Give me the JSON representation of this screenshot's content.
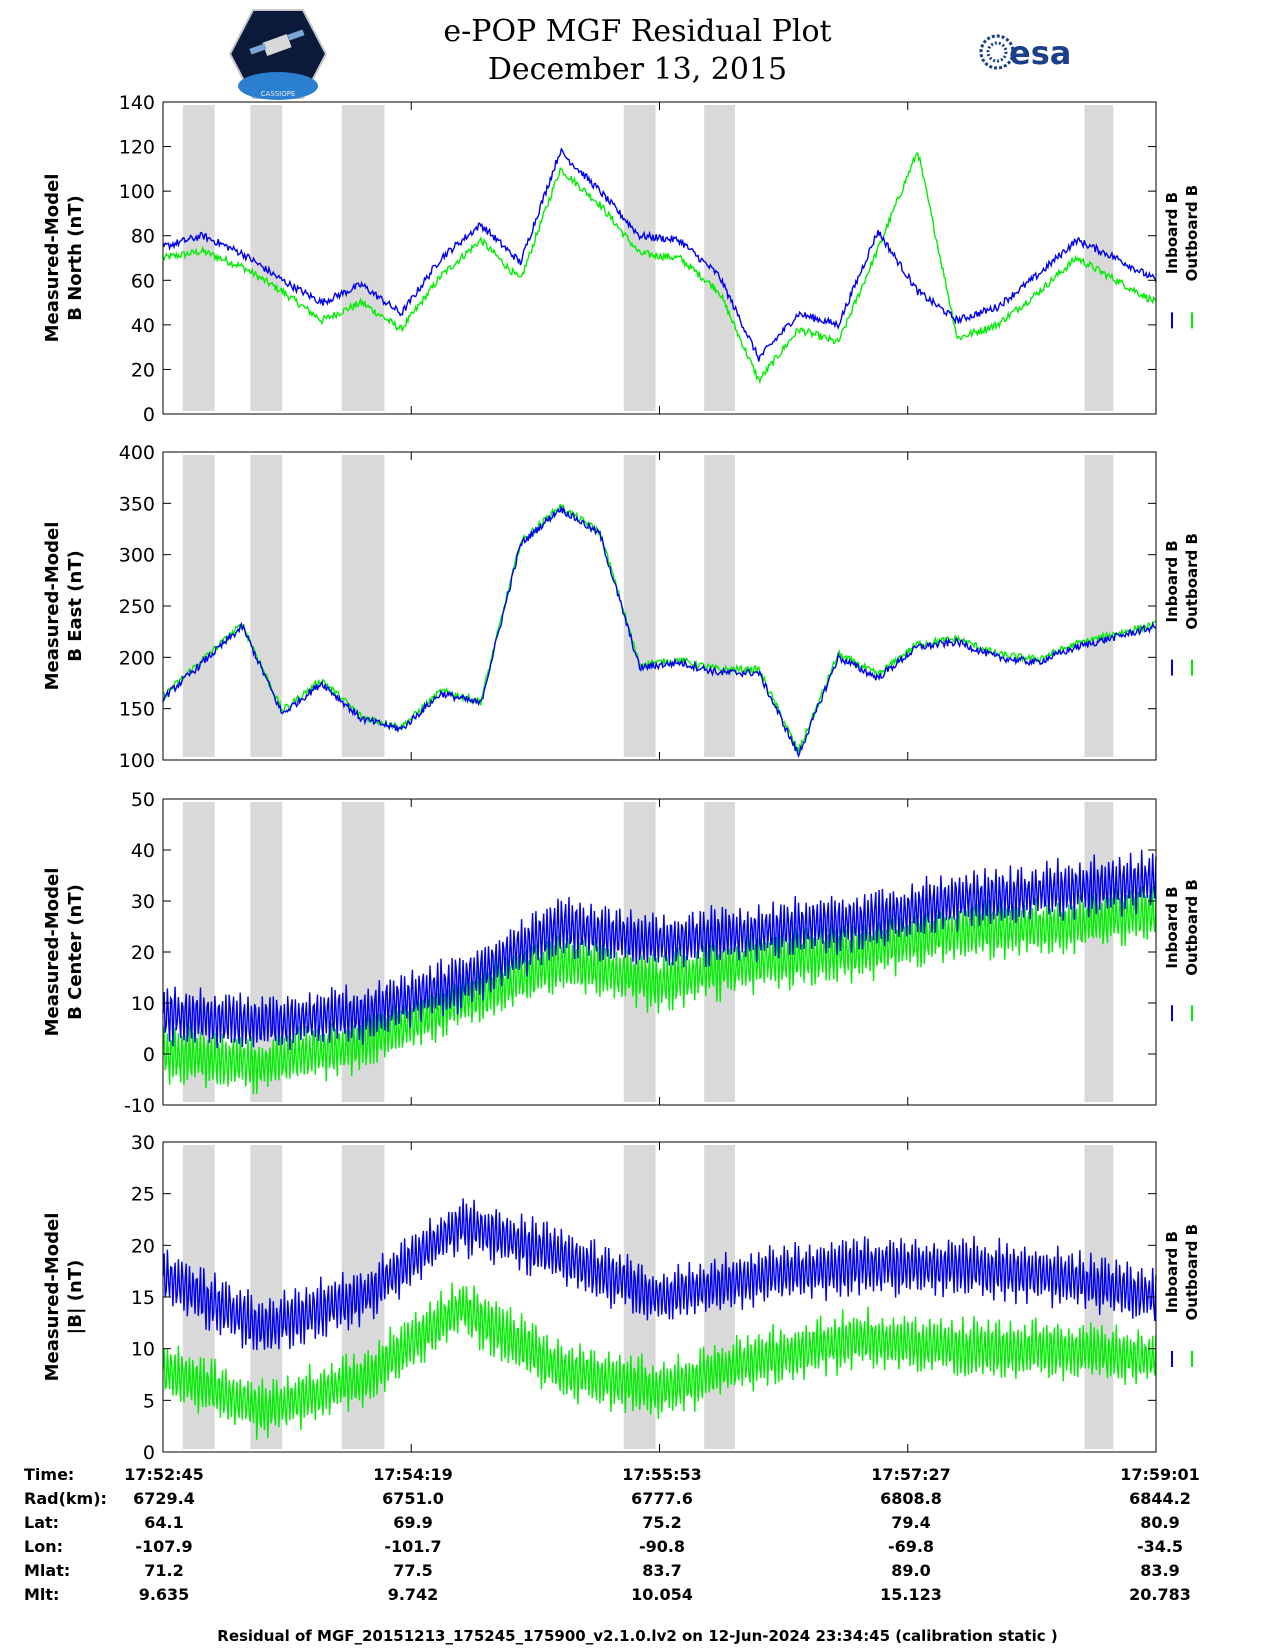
{
  "title": "e-POP MGF Residual Plot",
  "date": "December 13, 2015",
  "logo_right_text": "esa",
  "logo_left_text": "CASSIOPE",
  "colors": {
    "inboard": "#0000ee",
    "outboard": "#00ee00",
    "shade": "#d9d9d9"
  },
  "chart_data": [
    {
      "type": "line",
      "ylabel": [
        "Measured-Model",
        "B North (nT)"
      ],
      "ylim": [
        0,
        140
      ],
      "yticks": [
        0,
        20,
        40,
        60,
        80,
        100,
        120,
        140
      ],
      "legend": [
        "Inboard B",
        "Outboard B"
      ],
      "series": [
        {
          "name": "Inboard B",
          "x": [
            0,
            4,
            8,
            12,
            16,
            20,
            24,
            28,
            32,
            36,
            40,
            44,
            48,
            52,
            56,
            60,
            64,
            68,
            72,
            76,
            80,
            84,
            88,
            92,
            96,
            100
          ],
          "values": [
            75,
            80,
            72,
            60,
            50,
            58,
            45,
            70,
            85,
            68,
            118,
            100,
            80,
            78,
            62,
            25,
            45,
            40,
            82,
            55,
            42,
            48,
            62,
            78,
            70,
            60
          ]
        },
        {
          "name": "Outboard B",
          "x": [
            0,
            4,
            8,
            12,
            16,
            20,
            24,
            28,
            32,
            36,
            40,
            44,
            48,
            52,
            56,
            60,
            64,
            68,
            72,
            76,
            80,
            84,
            88,
            92,
            96,
            100
          ],
          "values": [
            70,
            73,
            66,
            55,
            42,
            50,
            38,
            62,
            78,
            60,
            110,
            94,
            72,
            70,
            55,
            15,
            38,
            32,
            74,
            118,
            34,
            40,
            54,
            70,
            60,
            50
          ]
        }
      ]
    },
    {
      "type": "line",
      "ylabel": [
        "Measured-Model",
        "B East (nT)"
      ],
      "ylim": [
        100,
        400
      ],
      "yticks": [
        100,
        150,
        200,
        250,
        300,
        350,
        400
      ],
      "legend": [
        "Inboard B",
        "Outboard B"
      ],
      "series": [
        {
          "name": "Inboard B",
          "x": [
            0,
            4,
            8,
            12,
            16,
            20,
            24,
            28,
            32,
            36,
            40,
            44,
            48,
            52,
            56,
            60,
            64,
            68,
            72,
            76,
            80,
            84,
            88,
            92,
            96,
            100
          ],
          "values": [
            160,
            195,
            230,
            145,
            175,
            140,
            130,
            165,
            155,
            310,
            345,
            320,
            190,
            195,
            185,
            185,
            105,
            200,
            180,
            210,
            215,
            200,
            195,
            210,
            220,
            230
          ]
        },
        {
          "name": "Outboard B",
          "x": [
            0,
            4,
            8,
            12,
            16,
            20,
            24,
            28,
            32,
            36,
            40,
            44,
            48,
            52,
            56,
            60,
            64,
            68,
            72,
            76,
            80,
            84,
            88,
            92,
            96,
            100
          ],
          "values": [
            162,
            198,
            232,
            148,
            178,
            142,
            132,
            167,
            157,
            312,
            347,
            322,
            193,
            197,
            188,
            188,
            108,
            203,
            183,
            213,
            218,
            203,
            198,
            213,
            223,
            232
          ]
        }
      ]
    },
    {
      "type": "line",
      "ylabel": [
        "Measured-Model",
        "B Center (nT)"
      ],
      "ylim": [
        -10,
        50
      ],
      "yticks": [
        -10,
        0,
        10,
        20,
        30,
        40,
        50
      ],
      "legend": [
        "Inboard B",
        "Outboard B"
      ],
      "series": [
        {
          "name": "Inboard B",
          "x": [
            0,
            10,
            20,
            30,
            40,
            50,
            60,
            70,
            80,
            90,
            100
          ],
          "values": [
            8,
            6,
            8,
            14,
            25,
            22,
            24,
            26,
            30,
            32,
            34
          ]
        },
        {
          "name": "Outboard B",
          "x": [
            0,
            10,
            20,
            30,
            40,
            50,
            60,
            70,
            80,
            90,
            100
          ],
          "values": [
            0,
            -2,
            2,
            10,
            18,
            14,
            18,
            20,
            24,
            25,
            28
          ]
        }
      ]
    },
    {
      "type": "line",
      "ylabel": [
        "Measured-Model",
        "|B| (nT)"
      ],
      "ylim": [
        0,
        30
      ],
      "yticks": [
        0,
        5,
        10,
        15,
        20,
        25,
        30
      ],
      "legend": [
        "Inboard B",
        "Outboard B"
      ],
      "series": [
        {
          "name": "Inboard B",
          "x": [
            0,
            10,
            20,
            30,
            40,
            50,
            60,
            70,
            80,
            90,
            100
          ],
          "values": [
            17,
            12,
            15,
            22,
            19,
            15,
            17,
            18,
            18,
            17,
            15
          ]
        },
        {
          "name": "Outboard B",
          "x": [
            0,
            10,
            20,
            30,
            40,
            50,
            60,
            70,
            80,
            90,
            100
          ],
          "values": [
            8,
            4,
            7,
            14,
            8,
            6,
            9,
            11,
            10,
            10,
            9
          ]
        }
      ]
    }
  ],
  "shaded_intervals": [
    [
      2,
      5.2
    ],
    [
      8.8,
      12
    ],
    [
      18,
      22.3
    ],
    [
      46.4,
      49.6
    ],
    [
      54.5,
      57.6
    ],
    [
      92.8,
      95.7
    ]
  ],
  "info_table": {
    "labels": [
      "Time:",
      "Rad(km):",
      "Lat:",
      "Lon:",
      "Mlat:",
      "Mlt:"
    ],
    "columns": [
      [
        "17:52:45",
        "6729.4",
        "64.1",
        "-107.9",
        "71.2",
        "9.635"
      ],
      [
        "17:54:19",
        "6751.0",
        "69.9",
        "-101.7",
        "77.5",
        "9.742"
      ],
      [
        "17:55:53",
        "6777.6",
        "75.2",
        "-90.8",
        "83.7",
        "10.054"
      ],
      [
        "17:57:27",
        "6808.8",
        "79.4",
        "-69.8",
        "89.0",
        "15.123"
      ],
      [
        "17:59:01",
        "6844.2",
        "80.9",
        "-34.5",
        "83.9",
        "20.783"
      ]
    ]
  },
  "footer": "Residual of MGF_20151213_175245_175900_v2.1.0.lv2 on 12-Jun-2024 23:34:45 (calibration static )"
}
